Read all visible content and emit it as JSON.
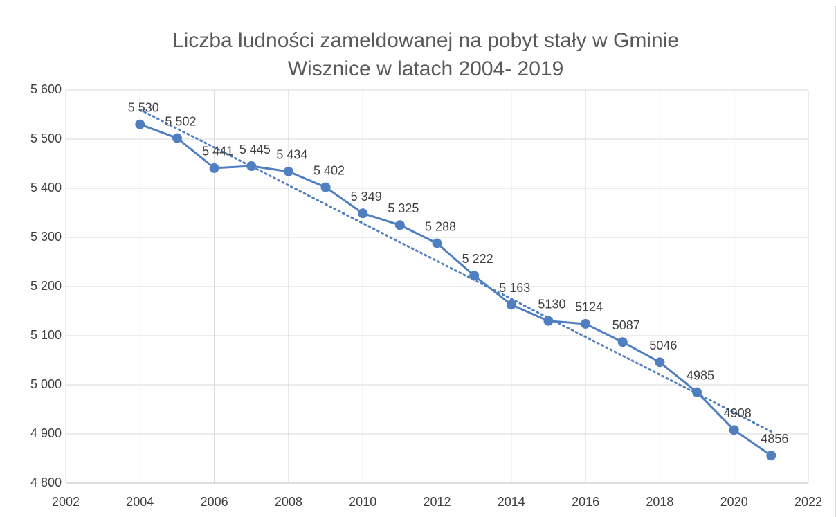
{
  "chart_data": {
    "type": "line",
    "title": [
      "Liczba ludności zameldowanej na pobyt stały w Gminie",
      "Wisznice w latach 2004- 2019"
    ],
    "x": [
      2004,
      2005,
      2006,
      2007,
      2008,
      2009,
      2010,
      2011,
      2012,
      2013,
      2014,
      2015,
      2016,
      2017,
      2018,
      2019,
      2020,
      2021
    ],
    "series": [
      {
        "color": "#4f7fc0",
        "values": [
          5530,
          5502,
          5441,
          5445,
          5434,
          5402,
          5349,
          5325,
          5288,
          5222,
          5163,
          5130,
          5124,
          5087,
          5046,
          4985,
          4908,
          4856
        ],
        "value_labels": [
          "5 530",
          "5 502",
          "5 441",
          "5 445",
          "5 434",
          "5 402",
          "5 349",
          "5 325",
          "5 288",
          "5 222",
          "5 163",
          "5130",
          "5124",
          "5087",
          "5046",
          "4985",
          "4908",
          "4856"
        ]
      }
    ],
    "trendline": {
      "x": [
        2004,
        2021
      ],
      "values": [
        5560,
        4905
      ],
      "color": "#4f7fc0"
    },
    "xlim": [
      2002,
      2022
    ],
    "xticks": [
      2002,
      2004,
      2006,
      2008,
      2010,
      2012,
      2014,
      2016,
      2018,
      2020,
      2022
    ],
    "ylim": [
      4800,
      5600
    ],
    "yticks": [
      {
        "value": 4800,
        "label": "4 800"
      },
      {
        "value": 4900,
        "label": "4 900"
      },
      {
        "value": 5000,
        "label": "5 000"
      },
      {
        "value": 5100,
        "label": "5 100"
      },
      {
        "value": 5200,
        "label": "5 200"
      },
      {
        "value": 5300,
        "label": "5 300"
      },
      {
        "value": 5400,
        "label": "5 400"
      },
      {
        "value": 5500,
        "label": "5 500"
      },
      {
        "value": 5600,
        "label": "5 600"
      }
    ],
    "grid": true
  }
}
